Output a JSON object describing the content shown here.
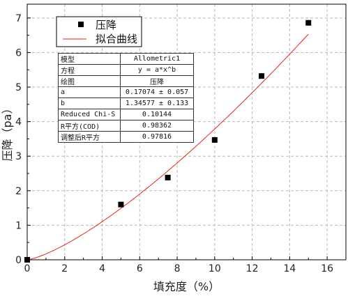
{
  "chart_data": {
    "type": "scatter",
    "xlabel": "填充度（%）",
    "ylabel": "压降（pa）",
    "xlim": [
      0,
      17
    ],
    "ylim": [
      0,
      7.4
    ],
    "x_ticks": [
      0,
      2,
      4,
      6,
      8,
      10,
      12,
      14,
      16
    ],
    "y_ticks": [
      0,
      1,
      2,
      3,
      4,
      5,
      6,
      7
    ],
    "grid": true,
    "legend_position": "top-left",
    "series": [
      {
        "name": "压降",
        "kind": "scatter",
        "marker": "square",
        "color": "#000000",
        "x": [
          0,
          5,
          7.5,
          10,
          12.5,
          15
        ],
        "y": [
          0,
          1.6,
          2.38,
          3.47,
          5.32,
          6.86
        ]
      },
      {
        "name": "拟合曲线",
        "kind": "line",
        "color": "#e8231a",
        "model": {
          "a": 0.17074,
          "b": 1.34577
        },
        "x_range": [
          0,
          15
        ]
      }
    ],
    "fit_table": [
      {
        "key": "模型",
        "value": "Allometric1"
      },
      {
        "key": "方程",
        "value": "y = a*x^b"
      },
      {
        "key": "绘图",
        "value": "压降"
      },
      {
        "key": "a",
        "value": "0.17074 ± 0.057"
      },
      {
        "key": "b",
        "value": "1.34577 ± 0.133"
      },
      {
        "key": "Reduced Chi-S",
        "value": "0.10144"
      },
      {
        "key": "R平方(COD)",
        "value": "0.98362"
      },
      {
        "key": "调整后R平方",
        "value": "0.97816"
      }
    ]
  }
}
